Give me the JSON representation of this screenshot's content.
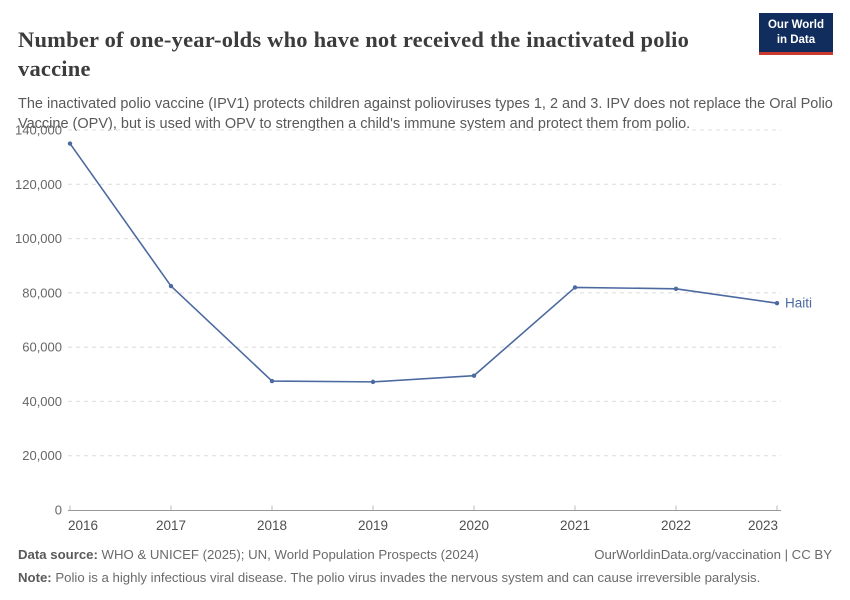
{
  "header": {
    "title": "Number of one-year-olds who have not received the inactivated polio vaccine",
    "subtitle": "The inactivated polio vaccine (IPV1) protects children against polioviruses types 1, 2 and 3. IPV does not replace the Oral Polio Vaccine (OPV), but is used with OPV to strengthen a child's immune system and protect them from polio.",
    "logo": {
      "line1": "Our World",
      "line2": "in Data",
      "bg_color": "#102d5e",
      "accent_color": "#ca392d"
    }
  },
  "chart_data": {
    "type": "line",
    "title": "Number of one-year-olds who have not received the inactivated polio vaccine",
    "x": [
      2016,
      2017,
      2018,
      2019,
      2020,
      2021,
      2022,
      2023
    ],
    "series": [
      {
        "name": "Haiti",
        "color": "#4C6AA0",
        "values": [
          135000,
          82500,
          47500,
          47200,
          49500,
          82000,
          81500,
          76200
        ]
      }
    ],
    "ylim": [
      0,
      140000
    ],
    "ytick_step": 20000,
    "xlabel": "",
    "ylabel": "",
    "grid": "horizontal-dashed",
    "legend": "end-of-line-label"
  },
  "footer": {
    "datasource_label": "Data source:",
    "datasource_text": " WHO & UNICEF (2025); UN, World Population Prospects (2024)",
    "license_text": "OurWorldinData.org/vaccination | CC BY",
    "note_label": "Note:",
    "note_text": " Polio is a highly infectious viral disease. The polio virus invades the nervous system and can cause irreversible paralysis."
  }
}
